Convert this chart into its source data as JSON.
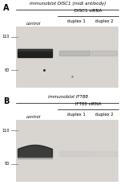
{
  "title_A": "immunoblot DISC1 (midi antibody)",
  "title_B": "immunoblot IFT88",
  "label_A": "A",
  "label_B": "B",
  "control_label": "control",
  "sirna_A": "DISC1 siRNA",
  "sirna_B": "IFT88 siRNA",
  "duplex1": "duplex 1",
  "duplex2": "duplex 2",
  "marker_110": "110",
  "marker_80": "80",
  "gel_bg": "#d8d5d0",
  "band_dark": "#1c1c1c",
  "band_faint": "#aaaaaa",
  "fig_width": 1.5,
  "fig_height": 2.35
}
